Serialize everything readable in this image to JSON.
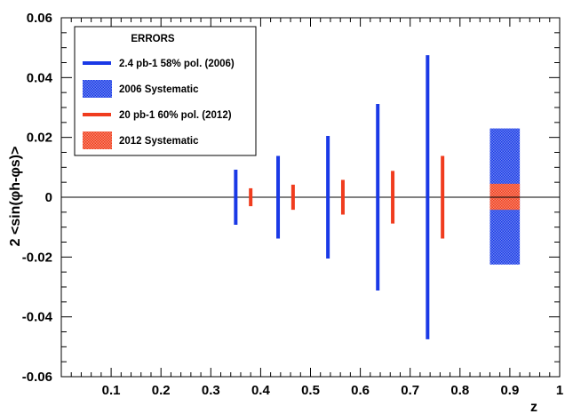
{
  "chart_data": {
    "type": "scatter",
    "title": "",
    "xlabel": "z",
    "ylabel": "2 <sin(φh-φs)>",
    "xlim": [
      0,
      1
    ],
    "ylim": [
      -0.06,
      0.06
    ],
    "x_ticks": [
      "0.1",
      "0.2",
      "0.3",
      "0.4",
      "0.5",
      "0.6",
      "0.7",
      "0.8",
      "0.9",
      "1"
    ],
    "y_ticks": [
      "-0.06",
      "-0.04",
      "-0.02",
      "0",
      "0.02",
      "0.04",
      "0.06"
    ],
    "reference_line_y": 0,
    "legend": {
      "title": "ERRORS",
      "position": "top-left",
      "entries": [
        {
          "label": "2.4 pb-1 58% pol. (2006)",
          "kind": "line",
          "color": "#1a39e6"
        },
        {
          "label": "2006 Systematic",
          "kind": "box",
          "color": "#3a5ae8"
        },
        {
          "label": "20 pb-1 60% pol. (2012)",
          "kind": "line",
          "color": "#f03c1e"
        },
        {
          "label": "2012 Systematic",
          "kind": "box",
          "color": "#f04a30"
        }
      ]
    },
    "series": [
      {
        "name": "2.4 pb-1 58% pol. (2006)",
        "color": "#1a39e6",
        "x": [
          0.35,
          0.435,
          0.535,
          0.635,
          0.735
        ],
        "y": [
          0,
          0,
          0,
          0,
          0
        ],
        "err": [
          0.0092,
          0.0138,
          0.0205,
          0.0312,
          0.0475
        ]
      },
      {
        "name": "20 pb-1 60% pol. (2012)",
        "color": "#f03c1e",
        "x": [
          0.38,
          0.465,
          0.565,
          0.665,
          0.765
        ],
        "y": [
          0,
          0,
          0,
          0,
          0
        ],
        "err": [
          0.003,
          0.0042,
          0.0058,
          0.0088,
          0.0138
        ]
      }
    ],
    "systematic_bands": [
      {
        "name": "2006 Systematic",
        "color": "#3a5ae8",
        "x_range": [
          0.86,
          0.92
        ],
        "y_range": [
          -0.0225,
          0.023
        ]
      },
      {
        "name": "2012 Systematic",
        "color": "#f04a30",
        "x_range": [
          0.86,
          0.92
        ],
        "y_range": [
          -0.0042,
          0.0045
        ]
      }
    ]
  }
}
